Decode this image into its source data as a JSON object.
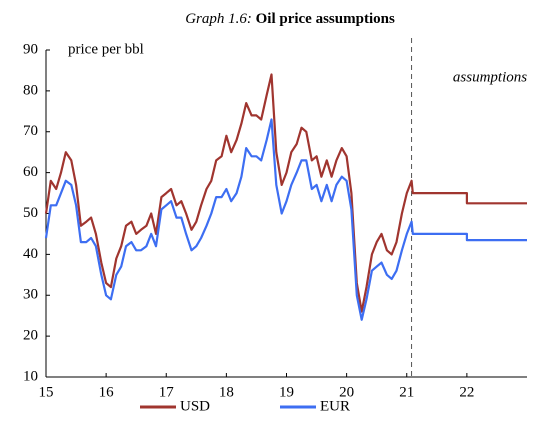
{
  "chart_data": {
    "type": "line",
    "title_prefix": "Graph 1.6:",
    "title": "Oil price assumptions",
    "y_label": "price per bbl",
    "annotation": "assumptions",
    "forecast_start": 21.08,
    "x": [
      15,
      15.08,
      15.17,
      15.25,
      15.33,
      15.42,
      15.5,
      15.58,
      15.67,
      15.75,
      15.83,
      15.92,
      16,
      16.08,
      16.17,
      16.25,
      16.33,
      16.42,
      16.5,
      16.58,
      16.67,
      16.75,
      16.83,
      16.92,
      17,
      17.08,
      17.17,
      17.25,
      17.33,
      17.42,
      17.5,
      17.58,
      17.67,
      17.75,
      17.83,
      17.92,
      18,
      18.08,
      18.17,
      18.25,
      18.33,
      18.42,
      18.5,
      18.58,
      18.67,
      18.75,
      18.83,
      18.92,
      19,
      19.08,
      19.17,
      19.25,
      19.33,
      19.42,
      19.5,
      19.58,
      19.67,
      19.75,
      19.83,
      19.92,
      20,
      20.08,
      20.17,
      20.25,
      20.33,
      20.42,
      20.5,
      20.58,
      20.67,
      20.75,
      20.83,
      20.92,
      21,
      21.08,
      21.1,
      22,
      22,
      23
    ],
    "series": [
      {
        "name": "USD",
        "color": "#a0352f",
        "values": [
          50,
          58,
          56,
          60,
          65,
          63,
          57,
          47,
          48,
          49,
          45,
          38,
          33,
          32,
          39,
          42,
          47,
          48,
          45,
          46,
          47,
          50,
          45,
          54,
          55,
          56,
          52,
          53,
          50,
          46,
          48,
          52,
          56,
          58,
          63,
          64,
          69,
          65,
          68,
          72,
          77,
          74,
          74,
          73,
          79,
          84,
          65,
          57,
          60,
          65,
          67,
          71,
          70,
          63,
          64,
          59,
          63,
          59,
          63,
          66,
          64,
          55,
          33,
          26,
          32,
          40,
          43,
          45,
          41,
          40,
          43,
          50,
          55,
          58,
          55,
          55,
          52.5,
          52.5
        ]
      },
      {
        "name": "EUR",
        "color": "#3d6ef2",
        "values": [
          44,
          52,
          52,
          55,
          58,
          57,
          52,
          43,
          43,
          44,
          42,
          35,
          30,
          29,
          35,
          37,
          42,
          43,
          41,
          41,
          42,
          45,
          42,
          51,
          52,
          53,
          49,
          49,
          45,
          41,
          42,
          44,
          47,
          50,
          54,
          54,
          56,
          53,
          55,
          59,
          66,
          64,
          64,
          63,
          68,
          73,
          57,
          50,
          53,
          57,
          60,
          63,
          63,
          56,
          57,
          53,
          57,
          53,
          57,
          59,
          58,
          51,
          30,
          24,
          29,
          36,
          37,
          38,
          35,
          34,
          36,
          41,
          45,
          48,
          45,
          45,
          43.5,
          43.5
        ]
      }
    ],
    "xlim": [
      15,
      23
    ],
    "xticks": [
      15,
      16,
      17,
      18,
      19,
      20,
      21,
      22
    ],
    "ylim": [
      10,
      90
    ],
    "yticks": [
      10,
      20,
      30,
      40,
      50,
      60,
      70,
      80,
      90
    ],
    "legend": "bottom"
  }
}
